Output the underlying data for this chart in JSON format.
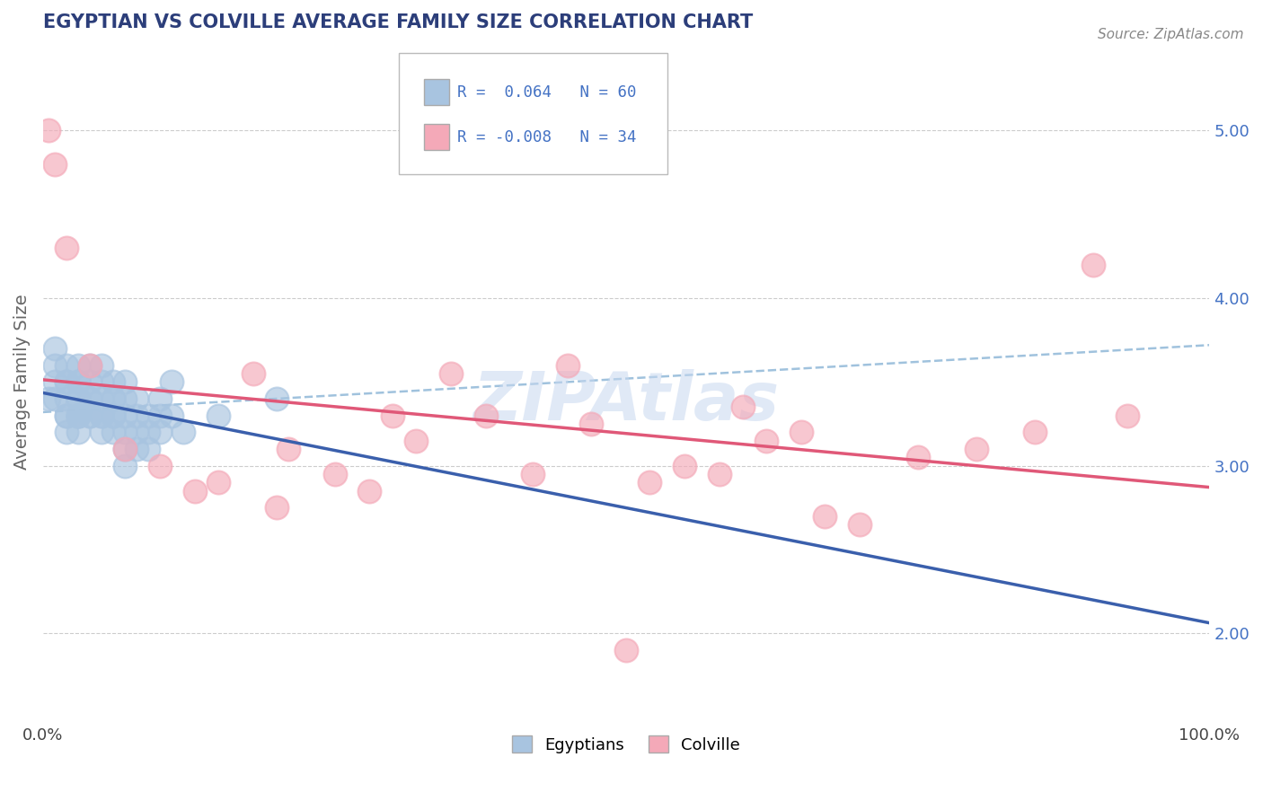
{
  "title": "EGYPTIAN VS COLVILLE AVERAGE FAMILY SIZE CORRELATION CHART",
  "source": "Source: ZipAtlas.com",
  "ylabel": "Average Family Size",
  "xlim": [
    0,
    100
  ],
  "ylim": [
    1.5,
    5.5
  ],
  "yticks": [
    2.0,
    3.0,
    4.0,
    5.0
  ],
  "egyptian_color": "#a8c4e0",
  "colville_color": "#f4a9b8",
  "egyptian_line_color": "#3a5fac",
  "colville_line_color": "#e05878",
  "dashed_line_color": "#90b8d8",
  "background_color": "#ffffff",
  "grid_color": "#cccccc",
  "title_color": "#2c3e7a",
  "axis_label_color": "#666666",
  "right_tick_color": "#4472c4",
  "watermark_color": "#c8d8f0",
  "egyptian_R": 0.064,
  "colville_R": -0.008,
  "egyptian_N": 60,
  "colville_N": 34,
  "egyptian_x": [
    0.5,
    1,
    1,
    1,
    1,
    2,
    2,
    2,
    2,
    2,
    2,
    2,
    3,
    3,
    3,
    3,
    3,
    3,
    3,
    3,
    3,
    4,
    4,
    4,
    4,
    4,
    4,
    5,
    5,
    5,
    5,
    5,
    5,
    6,
    6,
    6,
    6,
    6,
    6,
    7,
    7,
    7,
    7,
    7,
    7,
    8,
    8,
    8,
    8,
    9,
    9,
    9,
    10,
    10,
    10,
    11,
    11,
    12,
    15,
    20
  ],
  "egyptian_y": [
    3.4,
    3.5,
    3.6,
    3.7,
    3.4,
    3.3,
    3.4,
    3.5,
    3.6,
    3.2,
    3.3,
    3.5,
    3.2,
    3.3,
    3.4,
    3.5,
    3.3,
    3.4,
    3.6,
    3.3,
    3.5,
    3.3,
    3.4,
    3.5,
    3.3,
    3.4,
    3.6,
    3.2,
    3.3,
    3.4,
    3.5,
    3.3,
    3.6,
    3.2,
    3.3,
    3.4,
    3.5,
    3.3,
    3.4,
    3.0,
    3.1,
    3.2,
    3.3,
    3.4,
    3.5,
    3.1,
    3.2,
    3.3,
    3.4,
    3.1,
    3.2,
    3.3,
    3.2,
    3.3,
    3.4,
    3.3,
    3.5,
    3.2,
    3.3,
    3.4
  ],
  "colville_x": [
    0.5,
    1,
    2,
    4,
    7,
    10,
    13,
    15,
    18,
    21,
    25,
    28,
    32,
    38,
    42,
    47,
    52,
    55,
    58,
    62,
    67,
    70,
    75,
    80,
    85,
    90,
    93,
    50,
    45,
    35,
    30,
    20,
    60,
    65
  ],
  "colville_y": [
    5.0,
    4.8,
    4.3,
    3.6,
    3.1,
    3.0,
    2.85,
    2.9,
    3.55,
    3.1,
    2.95,
    2.85,
    3.15,
    3.3,
    2.95,
    3.25,
    2.9,
    3.0,
    2.95,
    3.15,
    2.7,
    2.65,
    3.05,
    3.1,
    3.2,
    4.2,
    3.3,
    1.9,
    3.6,
    3.55,
    3.3,
    2.75,
    3.35,
    3.2
  ]
}
